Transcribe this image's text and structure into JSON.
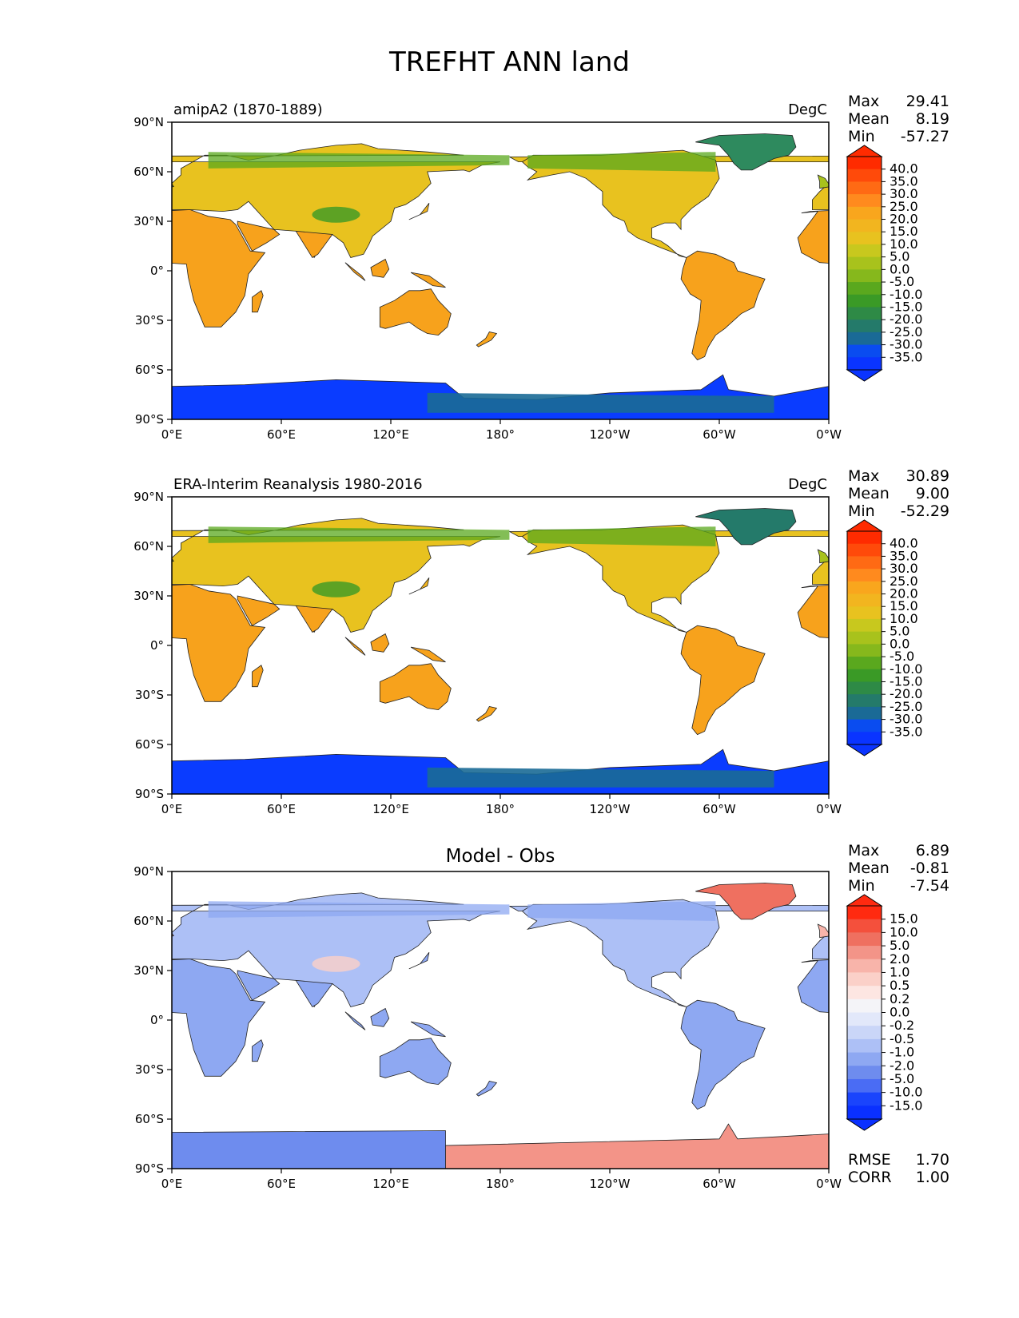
{
  "figure": {
    "title": "TREFHT ANN land"
  },
  "panels": [
    {
      "id": "model",
      "title_left": "amipA2 (1870-1889)",
      "title_center": "",
      "units": "DegC",
      "stats": [
        {
          "label": "Max",
          "value": "29.41"
        },
        {
          "label": "Mean",
          "value": "8.19"
        },
        {
          "label": "Min",
          "value": "-57.27"
        }
      ],
      "extra_stats": [],
      "colorbar": {
        "ticks": [
          "40.0",
          "35.0",
          "30.0",
          "25.0",
          "20.0",
          "15.0",
          "10.0",
          "5.0",
          "0.0",
          "-5.0",
          "-10.0",
          "-15.0",
          "-20.0",
          "-25.0",
          "-30.0",
          "-35.0"
        ],
        "colors": [
          "#ff2b00",
          "#ff4a0a",
          "#ff6a14",
          "#ff8a1e",
          "#f9a61d",
          "#f2b51f",
          "#e8c21f",
          "#c8c81e",
          "#a8c21c",
          "#86b81c",
          "#5aa81e",
          "#3a9a26",
          "#2e8a46",
          "#247a6a",
          "#1a6a96",
          "#0a4cf0",
          "#0a34ff"
        ],
        "arrow_top": "#ff2b00",
        "arrow_bottom": "#0a34ff"
      },
      "map_colors": {
        "antarctica": "#0a3cff",
        "greenland": "#2e8a5e",
        "tropics": "#f7a21c"
      }
    },
    {
      "id": "obs",
      "title_left": "ERA-Interim Reanalysis 1980-2016",
      "title_center": "",
      "units": "DegC",
      "stats": [
        {
          "label": "Max",
          "value": "30.89"
        },
        {
          "label": "Mean",
          "value": "9.00"
        },
        {
          "label": "Min",
          "value": "-52.29"
        }
      ],
      "extra_stats": [],
      "colorbar": {
        "ticks": [
          "40.0",
          "35.0",
          "30.0",
          "25.0",
          "20.0",
          "15.0",
          "10.0",
          "5.0",
          "0.0",
          "-5.0",
          "-10.0",
          "-15.0",
          "-20.0",
          "-25.0",
          "-30.0",
          "-35.0"
        ],
        "colors": [
          "#ff2b00",
          "#ff4a0a",
          "#ff6a14",
          "#ff8a1e",
          "#f9a61d",
          "#f2b51f",
          "#e8c21f",
          "#c8c81e",
          "#a8c21c",
          "#86b81c",
          "#5aa81e",
          "#3a9a26",
          "#2e8a46",
          "#247a6a",
          "#1a6a96",
          "#0a4cf0",
          "#0a34ff"
        ],
        "arrow_top": "#ff2b00",
        "arrow_bottom": "#0a34ff"
      },
      "map_colors": {
        "antarctica": "#0a3cff",
        "greenland": "#247a6a",
        "tropics": "#f7a21c"
      }
    },
    {
      "id": "diff",
      "title_left": "",
      "title_center": "Model - Obs",
      "units": "",
      "stats": [
        {
          "label": "Max",
          "value": "6.89"
        },
        {
          "label": "Mean",
          "value": "-0.81"
        },
        {
          "label": "Min",
          "value": "-7.54"
        }
      ],
      "extra_stats": [
        {
          "label": "RMSE",
          "value": "1.70"
        },
        {
          "label": "CORR",
          "value": "1.00"
        }
      ],
      "colorbar": {
        "ticks": [
          "15.0",
          "10.0",
          "5.0",
          "2.0",
          "1.0",
          "0.5",
          "0.2",
          "0.0",
          "-0.2",
          "-0.5",
          "-1.0",
          "-2.0",
          "-5.0",
          "-10.0",
          "-15.0"
        ],
        "colors": [
          "#ff2a10",
          "#f4503c",
          "#ef7060",
          "#f39488",
          "#f8b4aa",
          "#fbd0c8",
          "#fde6e2",
          "#f4f4f8",
          "#e2e8fa",
          "#cad6f8",
          "#adc0f6",
          "#8ea8f2",
          "#6e8cee",
          "#4a6cf4",
          "#1a44fc",
          "#0a30ff"
        ],
        "arrow_top": "#ff2a10",
        "arrow_bottom": "#0a30ff"
      },
      "map_colors": {
        "antarctica_east": "#6e8cee",
        "antarctica_west": "#f39488",
        "greenland": "#ef7060",
        "tropics": "#8ea8f2"
      }
    }
  ],
  "axes": {
    "x_ticks": [
      "0°E",
      "60°E",
      "120°E",
      "180°",
      "120°W",
      "60°W",
      "0°W"
    ],
    "y_ticks": [
      "90°N",
      "60°N",
      "30°N",
      "0°",
      "30°S",
      "60°S",
      "90°S"
    ]
  }
}
